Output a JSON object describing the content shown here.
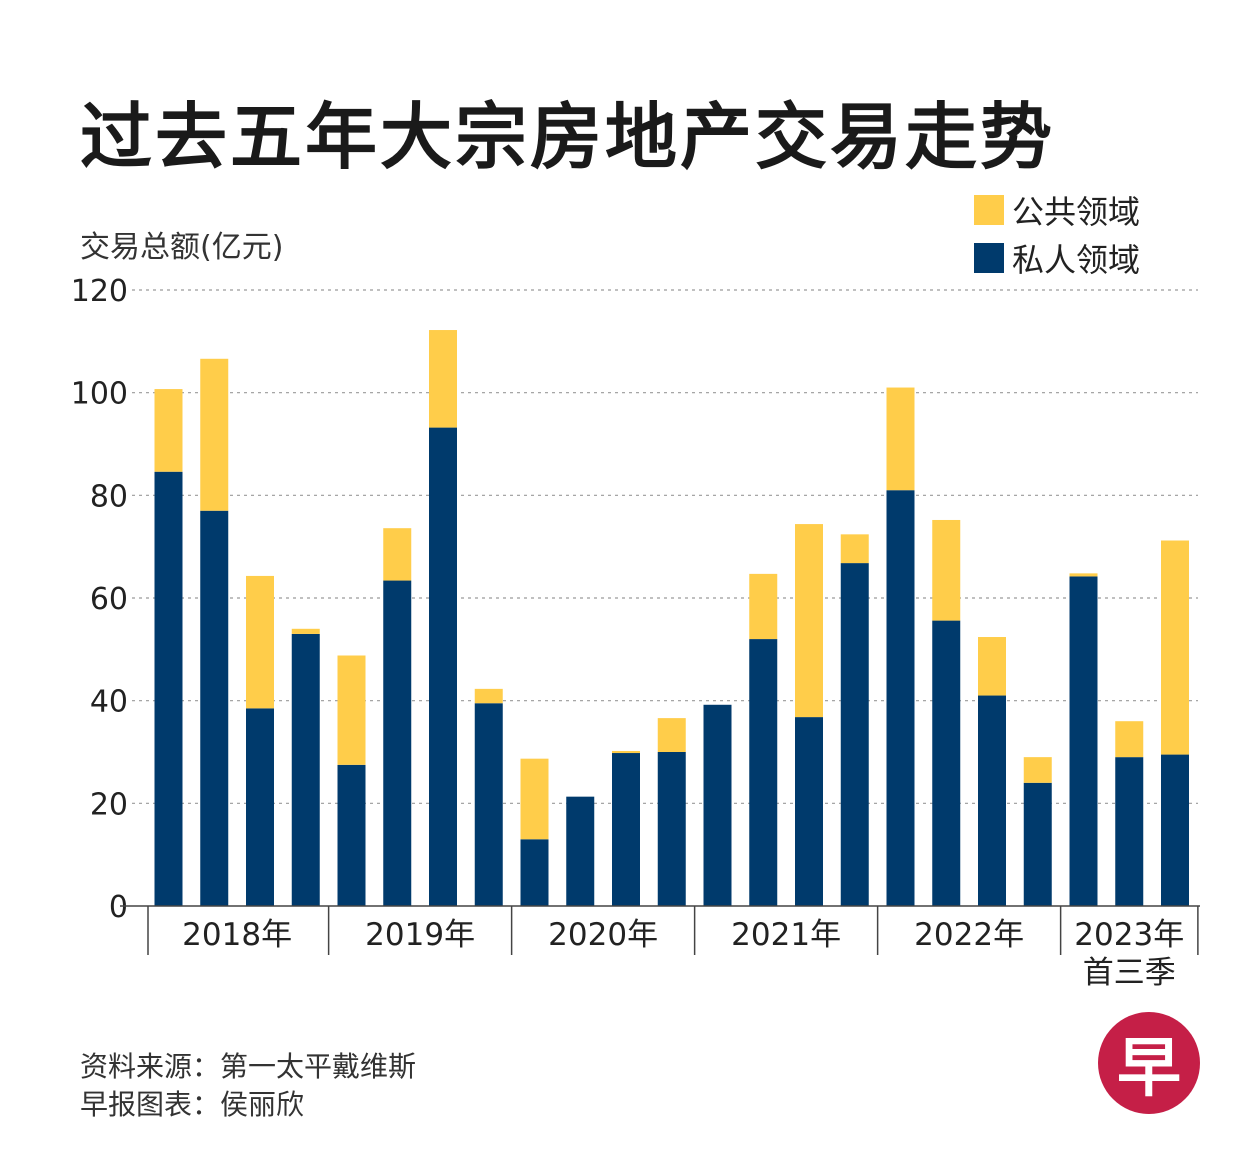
{
  "chart_data": {
    "type": "bar",
    "stacked": true,
    "title": "过去五年大宗房地产交易走势",
    "ylabel": "交易总额(亿元)",
    "ylim": [
      0,
      120
    ],
    "yticks": [
      0,
      20,
      40,
      60,
      80,
      100,
      120
    ],
    "grid": true,
    "groups": [
      "2018年",
      "2019年",
      "2020年",
      "2021年",
      "2022年",
      "2023年\n首三季"
    ],
    "quarters_per_group": [
      4,
      4,
      4,
      4,
      4,
      3
    ],
    "series": [
      {
        "name": "私人领域",
        "color": "#003a6c",
        "values": [
          84.6,
          77.0,
          38.5,
          53.0,
          27.5,
          63.4,
          93.2,
          39.5,
          13.0,
          21.3,
          29.8,
          30.0,
          39.2,
          52.0,
          36.8,
          66.8,
          81.0,
          55.6,
          41.0,
          24.0,
          64.2,
          29.0,
          29.5
        ]
      },
      {
        "name": "公共领域",
        "color": "#ffcd4a",
        "values": [
          16.1,
          29.6,
          25.8,
          1.0,
          21.3,
          10.2,
          19.0,
          2.8,
          15.7,
          0.0,
          0.4,
          6.6,
          0.0,
          12.7,
          37.6,
          5.6,
          20.0,
          19.6,
          11.4,
          5.0,
          0.6,
          7.0,
          41.7
        ]
      }
    ],
    "legend": [
      "公共领域",
      "私人领域"
    ],
    "legend_position": "top-right"
  },
  "source_line": "资料来源：第一太平戴维斯",
  "credit_line": "早报图表：侯丽欣",
  "logo_char": "早"
}
